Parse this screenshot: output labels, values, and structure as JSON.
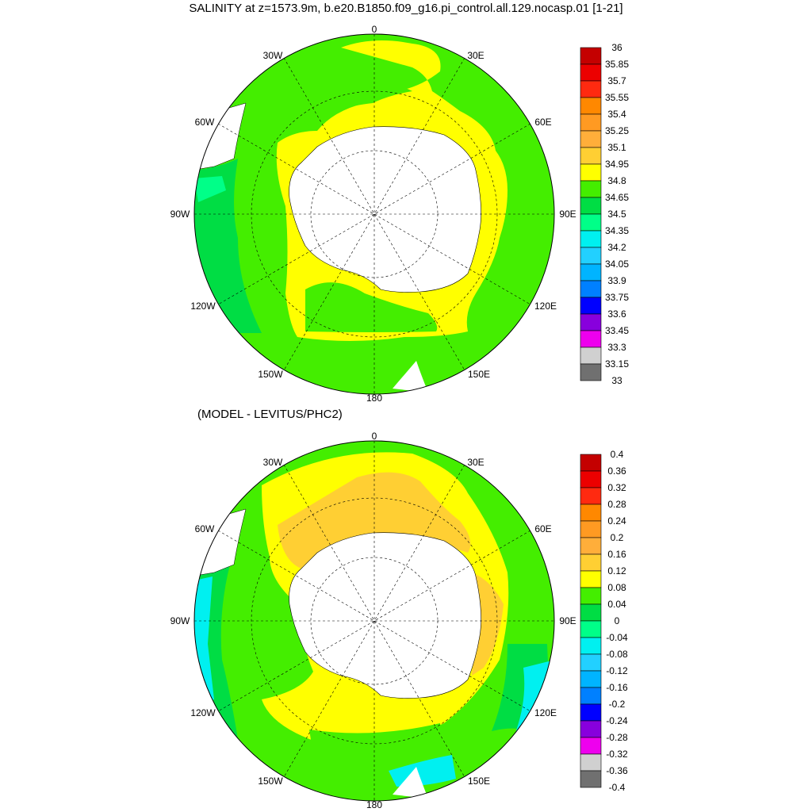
{
  "top": {
    "title": "SALINITY at z=1573.9m, b.e20.B1850.f09_g16.pi_control.all.129.nocasp.01 [1-21]",
    "longitude_labels": [
      "0",
      "30E",
      "60E",
      "90E",
      "120E",
      "150E",
      "180",
      "150W",
      "120W",
      "90W",
      "60W",
      "30W"
    ],
    "colorbar_ticks": [
      "36",
      "35.85",
      "35.7",
      "35.55",
      "35.4",
      "35.25",
      "35.1",
      "34.95",
      "34.8",
      "34.65",
      "34.5",
      "34.35",
      "34.2",
      "34.05",
      "33.9",
      "33.75",
      "33.6",
      "33.45",
      "33.3",
      "33.15",
      "33"
    ],
    "colorbar_colors": [
      "#c40000",
      "#ec0000",
      "#ff2a10",
      "#ff8800",
      "#ff9a22",
      "#ffae3a",
      "#ffcf33",
      "#ffff00",
      "#44ee00",
      "#00dd44",
      "#00ff88",
      "#00f0f0",
      "#22d0ff",
      "#00b4ff",
      "#0080ff",
      "#0000ff",
      "#8800dd",
      "#ee00ee",
      "#d0d0d0",
      "#707070"
    ]
  },
  "bottom": {
    "title": "(MODEL - LEVITUS/PHC2)",
    "longitude_labels": [
      "0",
      "30E",
      "60E",
      "90E",
      "120E",
      "150E",
      "180",
      "150W",
      "120W",
      "90W",
      "60W",
      "30W"
    ],
    "colorbar_ticks": [
      "0.4",
      "0.36",
      "0.32",
      "0.28",
      "0.24",
      "0.2",
      "0.16",
      "0.12",
      "0.08",
      "0.04",
      "0",
      "-0.04",
      "-0.08",
      "-0.12",
      "-0.16",
      "-0.2",
      "-0.24",
      "-0.28",
      "-0.32",
      "-0.36",
      "-0.4"
    ],
    "colorbar_colors": [
      "#c40000",
      "#ec0000",
      "#ff2a10",
      "#ff8800",
      "#ff9a22",
      "#ffae3a",
      "#ffcf33",
      "#ffff00",
      "#44ee00",
      "#00dd44",
      "#00ff88",
      "#00f0f0",
      "#22d0ff",
      "#00b4ff",
      "#0080ff",
      "#0000ff",
      "#8800dd",
      "#ee00ee",
      "#d0d0d0",
      "#707070"
    ]
  }
}
